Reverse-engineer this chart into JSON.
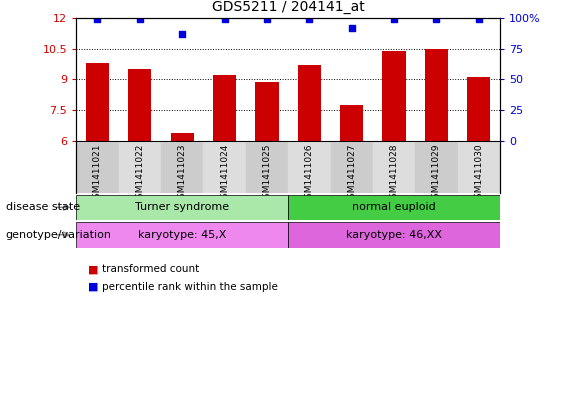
{
  "title": "GDS5211 / 204141_at",
  "samples": [
    "GSM1411021",
    "GSM1411022",
    "GSM1411023",
    "GSM1411024",
    "GSM1411025",
    "GSM1411026",
    "GSM1411027",
    "GSM1411028",
    "GSM1411029",
    "GSM1411030"
  ],
  "transformed_count": [
    9.8,
    9.5,
    6.4,
    9.2,
    8.85,
    9.7,
    7.75,
    10.4,
    10.5,
    9.1
  ],
  "percentile_rank": [
    99,
    99,
    87,
    99,
    99,
    99,
    92,
    99,
    99,
    99
  ],
  "ylim_left": [
    6,
    12
  ],
  "ylim_right": [
    0,
    100
  ],
  "yticks_left": [
    6,
    7.5,
    9,
    10.5,
    12
  ],
  "yticks_right": [
    0,
    25,
    50,
    75,
    100
  ],
  "ytick_labels_right": [
    "0",
    "25",
    "50",
    "75",
    "100%"
  ],
  "bar_color": "#cc0000",
  "marker_color": "#0000dd",
  "bar_width": 0.55,
  "groups": [
    {
      "label": "Turner syndrome",
      "start": 0,
      "end": 5,
      "color": "#aae8aa"
    },
    {
      "label": "normal euploid",
      "start": 5,
      "end": 10,
      "color": "#44cc44"
    }
  ],
  "genotype_groups": [
    {
      "label": "karyotype: 45,X",
      "start": 0,
      "end": 5,
      "color": "#ee88ee"
    },
    {
      "label": "karyotype: 46,XX",
      "start": 5,
      "end": 10,
      "color": "#dd66dd"
    }
  ],
  "disease_state_label": "disease state",
  "genotype_label": "genotype/variation",
  "legend_red_label": "transformed count",
  "legend_blue_label": "percentile rank within the sample",
  "background_color": "#ffffff",
  "title_fontsize": 10,
  "tick_label_fontsize": 8,
  "sample_bg_light": "#cccccc",
  "sample_bg_dark": "#bbbbbb",
  "dotted_line_color": "#000000",
  "arrow_color": "#888888"
}
